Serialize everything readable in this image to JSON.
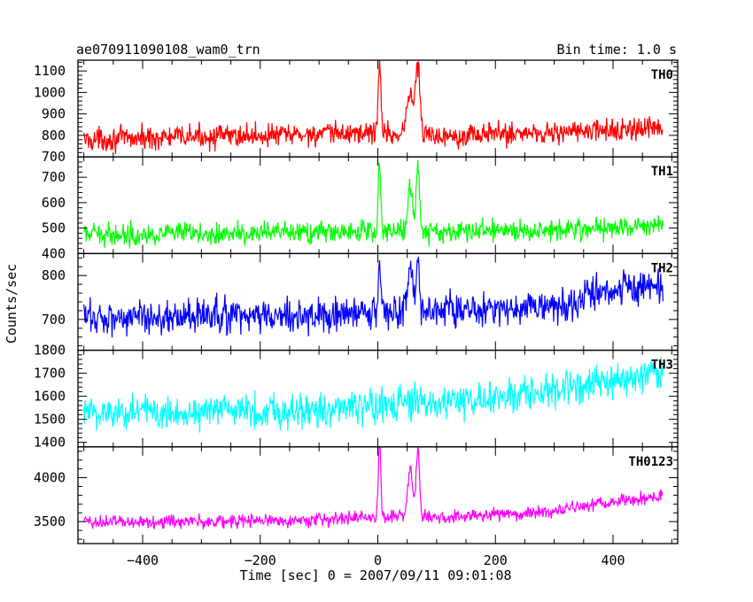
{
  "header": {
    "title": "ae070911090108_wam0_trn",
    "bin_time": "Bin time: 1.0 s"
  },
  "chart_data": {
    "type": "line",
    "xlabel": "Time [sec] 0 = 2007/09/11 09:01:08",
    "ylabel": "Counts/sec",
    "xlim": [
      -510,
      510
    ],
    "x_ticks": [
      -400,
      -200,
      0,
      200,
      400
    ],
    "x_data_range": [
      -500,
      485
    ],
    "bin_time_s": 1.0,
    "grid": false,
    "panels": [
      {
        "name": "TH0",
        "color": "#ff0000",
        "ylim": [
          700,
          1150
        ],
        "y_ticks": [
          700,
          800,
          900,
          1000,
          1100
        ],
        "baseline": [
          [
            -500,
            780
          ],
          [
            -300,
            795
          ],
          [
            -100,
            805
          ],
          [
            0,
            815
          ],
          [
            50,
            800
          ],
          [
            100,
            800
          ],
          [
            300,
            815
          ],
          [
            485,
            830
          ]
        ],
        "noise": 38,
        "events": [
          {
            "t": 3,
            "peak": 1160,
            "width": 3
          },
          {
            "t": 55,
            "peak": 1000,
            "width": 8
          },
          {
            "t": 68,
            "peak": 1120,
            "width": 5
          }
        ]
      },
      {
        "name": "TH1",
        "color": "#00ff00",
        "ylim": [
          400,
          780
        ],
        "y_ticks": [
          400,
          500,
          600,
          700
        ],
        "baseline": [
          [
            -500,
            475
          ],
          [
            -300,
            478
          ],
          [
            -100,
            482
          ],
          [
            0,
            490
          ],
          [
            100,
            485
          ],
          [
            300,
            495
          ],
          [
            485,
            510
          ]
        ],
        "noise": 30,
        "events": [
          {
            "t": 3,
            "peak": 760,
            "width": 3
          },
          {
            "t": 55,
            "peak": 660,
            "width": 6
          },
          {
            "t": 68,
            "peak": 750,
            "width": 4
          }
        ]
      },
      {
        "name": "TH2",
        "color": "#0000ff",
        "ylim": [
          630,
          850
        ],
        "y_ticks": [
          700,
          800
        ],
        "baseline": [
          [
            -500,
            705
          ],
          [
            -300,
            707
          ],
          [
            -100,
            708
          ],
          [
            0,
            715
          ],
          [
            200,
            725
          ],
          [
            340,
            730
          ],
          [
            360,
            765
          ],
          [
            485,
            775
          ]
        ],
        "noise": 28,
        "events": [
          {
            "t": 3,
            "peak": 830,
            "width": 3
          },
          {
            "t": 55,
            "peak": 815,
            "width": 6
          },
          {
            "t": 68,
            "peak": 830,
            "width": 4
          }
        ]
      },
      {
        "name": "TH3",
        "color": "#00ffff",
        "ylim": [
          1380,
          1800
        ],
        "y_ticks": [
          1400,
          1500,
          1600,
          1700,
          1800
        ],
        "baseline": [
          [
            -500,
            1530
          ],
          [
            -300,
            1535
          ],
          [
            -100,
            1540
          ],
          [
            0,
            1555
          ],
          [
            200,
            1590
          ],
          [
            400,
            1660
          ],
          [
            485,
            1710
          ]
        ],
        "noise": 55,
        "events": []
      },
      {
        "name": "TH0123",
        "color": "#ff00ff",
        "ylim": [
          3250,
          4350
        ],
        "y_ticks": [
          3500,
          4000
        ],
        "baseline": [
          [
            -500,
            3500
          ],
          [
            -300,
            3500
          ],
          [
            -100,
            3520
          ],
          [
            0,
            3560
          ],
          [
            50,
            3560
          ],
          [
            100,
            3545
          ],
          [
            300,
            3620
          ],
          [
            485,
            3800
          ]
        ],
        "noise": 55,
        "events": [
          {
            "t": 3,
            "peak": 4380,
            "width": 3
          },
          {
            "t": 55,
            "peak": 4100,
            "width": 6
          },
          {
            "t": 68,
            "peak": 4330,
            "width": 4
          }
        ]
      }
    ]
  }
}
